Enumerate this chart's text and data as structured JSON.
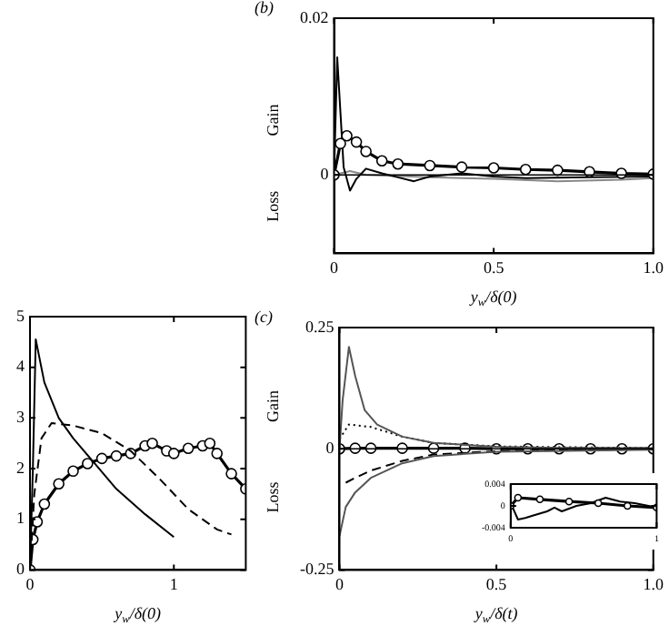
{
  "chart_data": [
    {
      "type": "line",
      "title": "(b)",
      "xlabel": "y$_{w}$/δ(0)",
      "annotations": [
        "Gain",
        "Loss"
      ],
      "xlim": [
        0,
        1
      ],
      "ylim": [
        -0.01,
        0.02
      ],
      "xticks": [
        0,
        0.5,
        {
          "value": 1,
          "label": "1.0"
        }
      ],
      "yticks": [
        0,
        0.02
      ],
      "legend": false,
      "ref_lines": [
        {
          "axis": "y",
          "value": 0,
          "color": "#000000"
        }
      ],
      "series": [
        {
          "color": "#000000",
          "marker": "circle",
          "line_style": "solid",
          "x": [
            0,
            0.02,
            0.04,
            0.07,
            0.1,
            0.15,
            0.2,
            0.3,
            0.4,
            0.5,
            0.6,
            0.7,
            0.8,
            0.9,
            1.0
          ],
          "values": [
            0,
            0.004,
            0.005,
            0.0042,
            0.003,
            0.0018,
            0.0014,
            0.0012,
            0.001,
            0.0009,
            0.0007,
            0.0006,
            0.0004,
            0.0002,
            0.0001
          ]
        },
        {
          "color": "#000000",
          "marker": "none",
          "line_style": "solid",
          "x": [
            0,
            0.01,
            0.02,
            0.03,
            0.05,
            0.07,
            0.1,
            0.15,
            0.2,
            0.25,
            0.3,
            0.4,
            0.5,
            0.6,
            0.8,
            1.0
          ],
          "values": [
            0,
            0.015,
            0.008,
            0.001,
            -0.002,
            -0.0005,
            0.0008,
            0.0002,
            -0.0003,
            -0.0008,
            -0.0002,
            0.0002,
            -0.0002,
            -0.0004,
            -0.0003,
            -0.0002
          ]
        },
        {
          "color": "#888888",
          "marker": "none",
          "line_style": "solid",
          "x": [
            0,
            0.05,
            0.1,
            0.3,
            0.5,
            0.7,
            0.9,
            1.0
          ],
          "values": [
            0,
            0.0005,
            0,
            -0.0003,
            -0.0005,
            -0.0008,
            -0.0006,
            -0.0004
          ]
        }
      ]
    },
    {
      "type": "line",
      "xlabel": "y$_{w}$/δ(0)",
      "xlim": [
        0,
        1.5
      ],
      "ylim": [
        0,
        5
      ],
      "xticks": [
        0,
        1
      ],
      "yticks": [
        0,
        1,
        2,
        3,
        4,
        5
      ],
      "legend": false,
      "series": [
        {
          "color": "#000000",
          "marker": "none",
          "line_style": "solid",
          "x": [
            0,
            0.02,
            0.04,
            0.1,
            0.2,
            0.3,
            0.45,
            0.6,
            0.8,
            1.0
          ],
          "values": [
            0,
            2,
            4.55,
            3.7,
            3.0,
            2.6,
            2.1,
            1.6,
            1.1,
            0.65
          ]
        },
        {
          "color": "#000000",
          "marker": "none",
          "line_style": "dashed",
          "x": [
            0,
            0.03,
            0.08,
            0.15,
            0.3,
            0.5,
            0.7,
            0.9,
            1.1,
            1.3,
            1.4
          ],
          "values": [
            0,
            1.5,
            2.6,
            2.9,
            2.85,
            2.7,
            2.35,
            1.8,
            1.2,
            0.8,
            0.7
          ]
        },
        {
          "color": "#000000",
          "marker": "circle",
          "line_style": "solid",
          "x": [
            0,
            0.02,
            0.05,
            0.1,
            0.2,
            0.3,
            0.4,
            0.5,
            0.6,
            0.7,
            0.8,
            0.85,
            0.95,
            1.0,
            1.1,
            1.2,
            1.25,
            1.3,
            1.4,
            1.5
          ],
          "values": [
            0,
            0.6,
            0.95,
            1.3,
            1.7,
            1.95,
            2.1,
            2.2,
            2.25,
            2.3,
            2.45,
            2.5,
            2.35,
            2.3,
            2.4,
            2.45,
            2.5,
            2.3,
            1.9,
            1.6
          ]
        }
      ]
    },
    {
      "type": "line",
      "title": "(c)",
      "xlabel": "y$_{w}$/δ(t)",
      "annotations": [
        "Gain",
        "Loss"
      ],
      "xlim": [
        0,
        1
      ],
      "ylim": [
        -0.25,
        0.25
      ],
      "xticks": [
        0,
        0.5,
        {
          "value": 1,
          "label": "1.0"
        }
      ],
      "yticks": [
        -0.25,
        0,
        0.25
      ],
      "legend": false,
      "ref_lines": [
        {
          "axis": "y",
          "value": 0,
          "color": "#000000"
        }
      ],
      "series": [
        {
          "color": "#555555",
          "marker": "none",
          "line_style": "solid",
          "x": [
            0,
            0.01,
            0.03,
            0.05,
            0.08,
            0.12,
            0.2,
            0.3,
            0.5,
            0.7,
            1.0
          ],
          "values": [
            0,
            0.1,
            0.21,
            0.15,
            0.08,
            0.05,
            0.025,
            0.012,
            0.004,
            0.002,
            0.001
          ]
        },
        {
          "color": "#555555",
          "marker": "none",
          "line_style": "solid",
          "x": [
            0,
            0.02,
            0.05,
            0.1,
            0.2,
            0.3,
            0.5,
            1.0
          ],
          "values": [
            -0.18,
            -0.12,
            -0.09,
            -0.06,
            -0.03,
            -0.015,
            -0.006,
            -0.002
          ]
        },
        {
          "color": "#000000",
          "marker": "none",
          "line_style": "dotted",
          "x": [
            0,
            0.03,
            0.1,
            0.2,
            0.3,
            0.5,
            1.0
          ],
          "values": [
            0.02,
            0.05,
            0.045,
            0.025,
            0.012,
            0.005,
            0.001
          ]
        },
        {
          "color": "#000000",
          "marker": "none",
          "line_style": "dashed",
          "x": [
            0.02,
            0.05,
            0.1,
            0.2,
            0.3,
            0.5,
            1.0
          ],
          "values": [
            -0.07,
            -0.06,
            -0.045,
            -0.025,
            -0.012,
            -0.005,
            -0.001
          ]
        },
        {
          "color": "#000000",
          "marker": "circle",
          "line_style": "solid",
          "x": [
            0,
            0.05,
            0.1,
            0.2,
            0.3,
            0.4,
            0.5,
            0.6,
            0.7,
            0.8,
            0.9,
            1.0
          ],
          "values": [
            0,
            0.001,
            0.001,
            0.001,
            0.001,
            0.001,
            0,
            0,
            0,
            0,
            0,
            0
          ]
        }
      ]
    },
    {
      "type": "line",
      "xlim": [
        0,
        1
      ],
      "ylim": [
        -0.004,
        0.004
      ],
      "xticks": [
        0,
        1
      ],
      "yticks": [
        {
          "value": 0.004,
          "label": "0.004"
        },
        0,
        {
          "value": -0.004,
          "label": "-0.004"
        }
      ],
      "legend": false,
      "series": [
        {
          "color": "#000000",
          "marker": "circle",
          "line_style": "solid",
          "x": [
            0,
            0.05,
            0.2,
            0.4,
            0.6,
            0.8,
            1.0
          ],
          "values": [
            0,
            0.0015,
            0.0012,
            0.0008,
            0.0005,
            0,
            -0.0003
          ]
        },
        {
          "color": "#000000",
          "marker": "none",
          "line_style": "solid",
          "x": [
            0,
            0.05,
            0.1,
            0.15,
            0.25,
            0.3,
            0.35,
            0.45,
            0.55,
            0.65,
            0.75,
            0.85,
            1.0
          ],
          "values": [
            0.0005,
            -0.0025,
            -0.0022,
            -0.0018,
            -0.001,
            -0.0003,
            -0.001,
            0,
            0.0005,
            0.0015,
            0.0008,
            0.0005,
            -0.0003
          ]
        }
      ]
    }
  ]
}
